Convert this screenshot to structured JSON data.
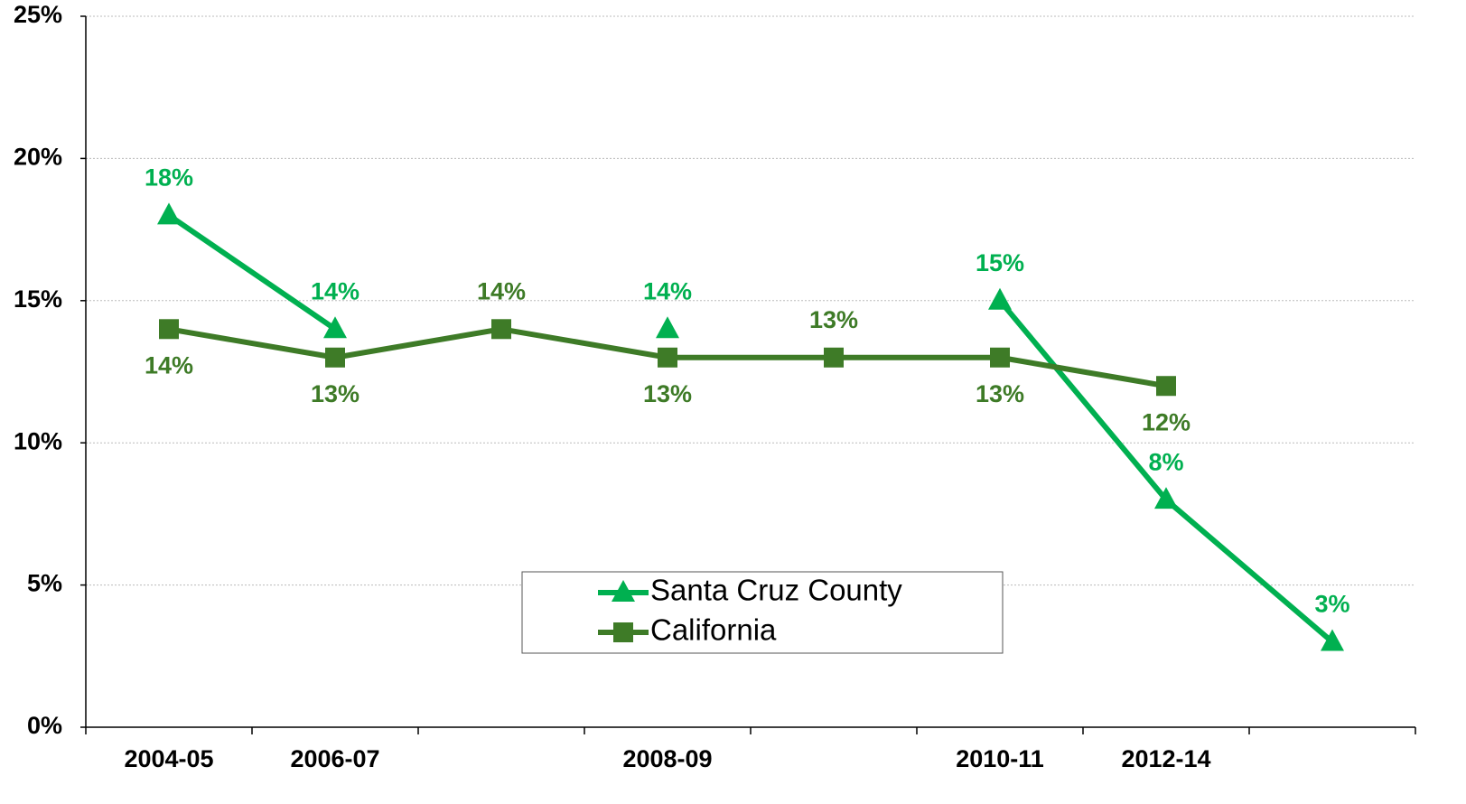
{
  "chart_data": {
    "type": "line",
    "categories": [
      "2004-05",
      "2006-07",
      null,
      "2008-09",
      null,
      "2010-11",
      "2012-14",
      null
    ],
    "series": [
      {
        "name": "Santa Cruz County",
        "color": "#00b050",
        "marker": "triangle",
        "values": [
          18,
          14,
          null,
          14,
          null,
          15,
          8,
          3
        ],
        "value_labels": [
          "18%",
          "14%",
          null,
          "14%",
          null,
          "15%",
          "8%",
          "3%"
        ]
      },
      {
        "name": "California",
        "color": "#3e7b27",
        "marker": "square",
        "values": [
          14,
          13,
          14,
          13,
          13,
          13,
          12,
          null
        ],
        "value_labels": [
          "14%",
          "13%",
          "14%",
          "13%",
          "13%",
          "13%",
          "12%",
          null
        ]
      }
    ],
    "ylim": [
      0,
      25
    ],
    "yticks": [
      {
        "value": 0,
        "label": "0%"
      },
      {
        "value": 5,
        "label": "5%"
      },
      {
        "value": 10,
        "label": "10%"
      },
      {
        "value": 15,
        "label": "15%"
      },
      {
        "value": 20,
        "label": "20%"
      },
      {
        "value": 25,
        "label": "25%"
      }
    ],
    "grid": true
  }
}
